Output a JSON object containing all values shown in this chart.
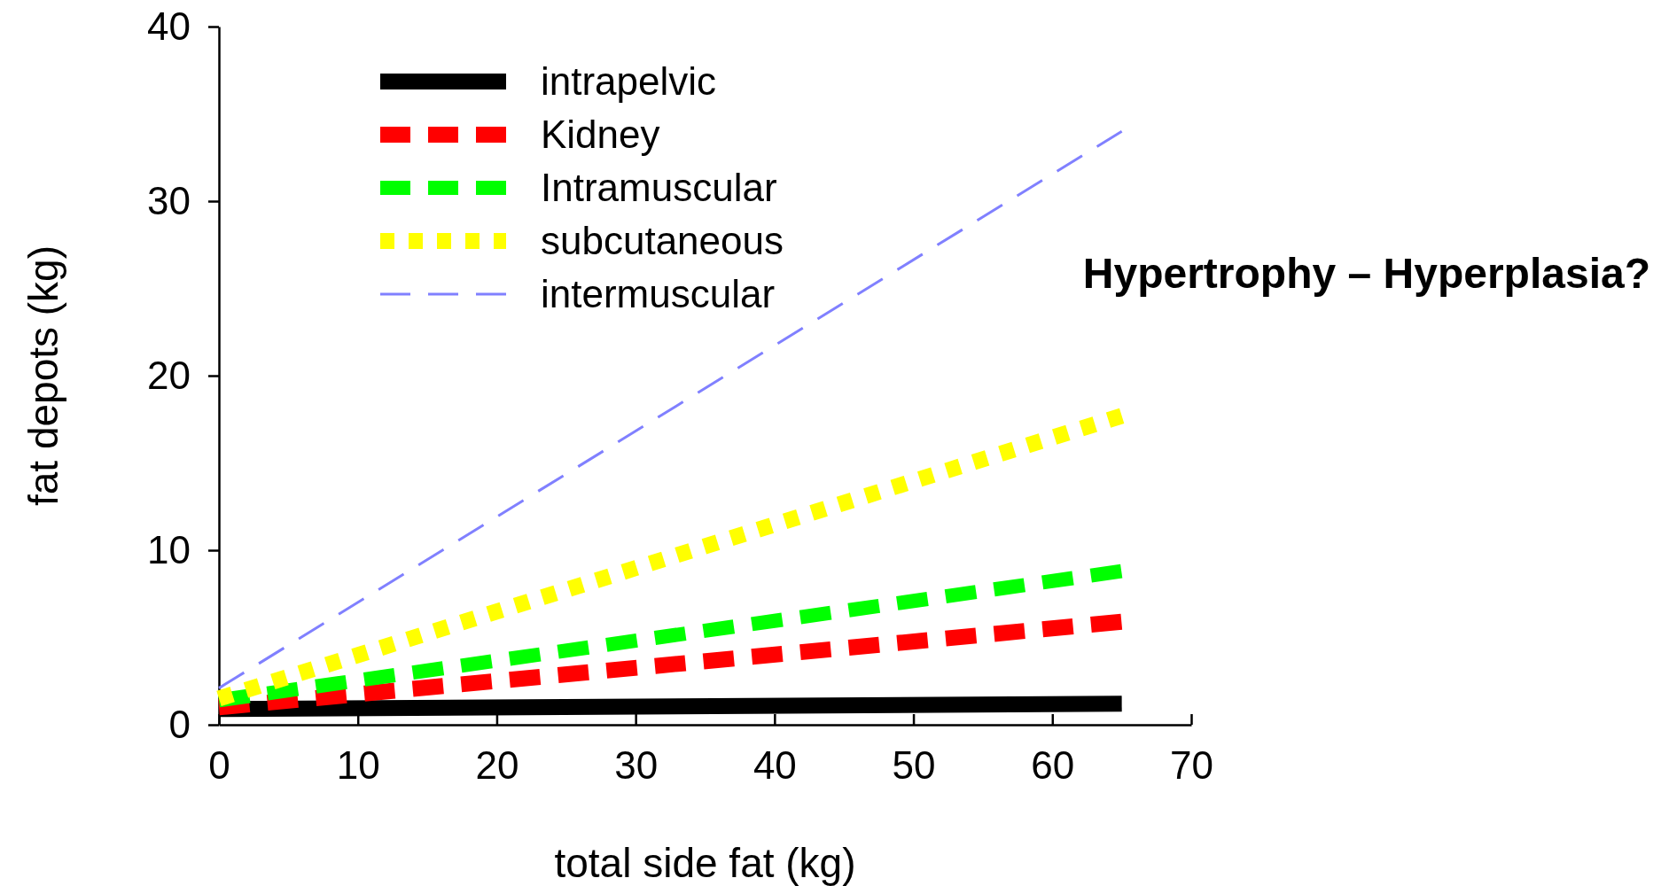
{
  "chart_data": {
    "type": "line",
    "xlabel": "total side fat (kg)",
    "ylabel": "fat depots (kg)",
    "xlim": [
      0,
      70
    ],
    "ylim": [
      0,
      40
    ],
    "xticks": [
      0,
      10,
      20,
      30,
      40,
      50,
      60,
      70
    ],
    "yticks": [
      0,
      10,
      20,
      30,
      40
    ],
    "grid": false,
    "legend": "top left",
    "x": [
      0,
      65
    ],
    "marker": "none",
    "annotations": [
      "Hypertrophy – Hyperplasia?"
    ],
    "series": [
      {
        "name": "intrapelvic",
        "color": "#000000",
        "line_style": "solid",
        "values": [
          0.9,
          1.2
        ]
      },
      {
        "name": "Kidney",
        "color": "#ff0000",
        "line_style": "dashed",
        "values": [
          1.0,
          5.9
        ]
      },
      {
        "name": "Intramuscular",
        "color": "#00ff00",
        "line_style": "dashed",
        "values": [
          1.4,
          8.8
        ]
      },
      {
        "name": "subcutaneous",
        "color": "#ffff00",
        "line_style": "dotted",
        "values": [
          1.5,
          17.7
        ]
      },
      {
        "name": "intermuscular",
        "color": "#8080ff",
        "line_style": "dashed",
        "values": [
          2.1,
          34
        ]
      }
    ]
  }
}
